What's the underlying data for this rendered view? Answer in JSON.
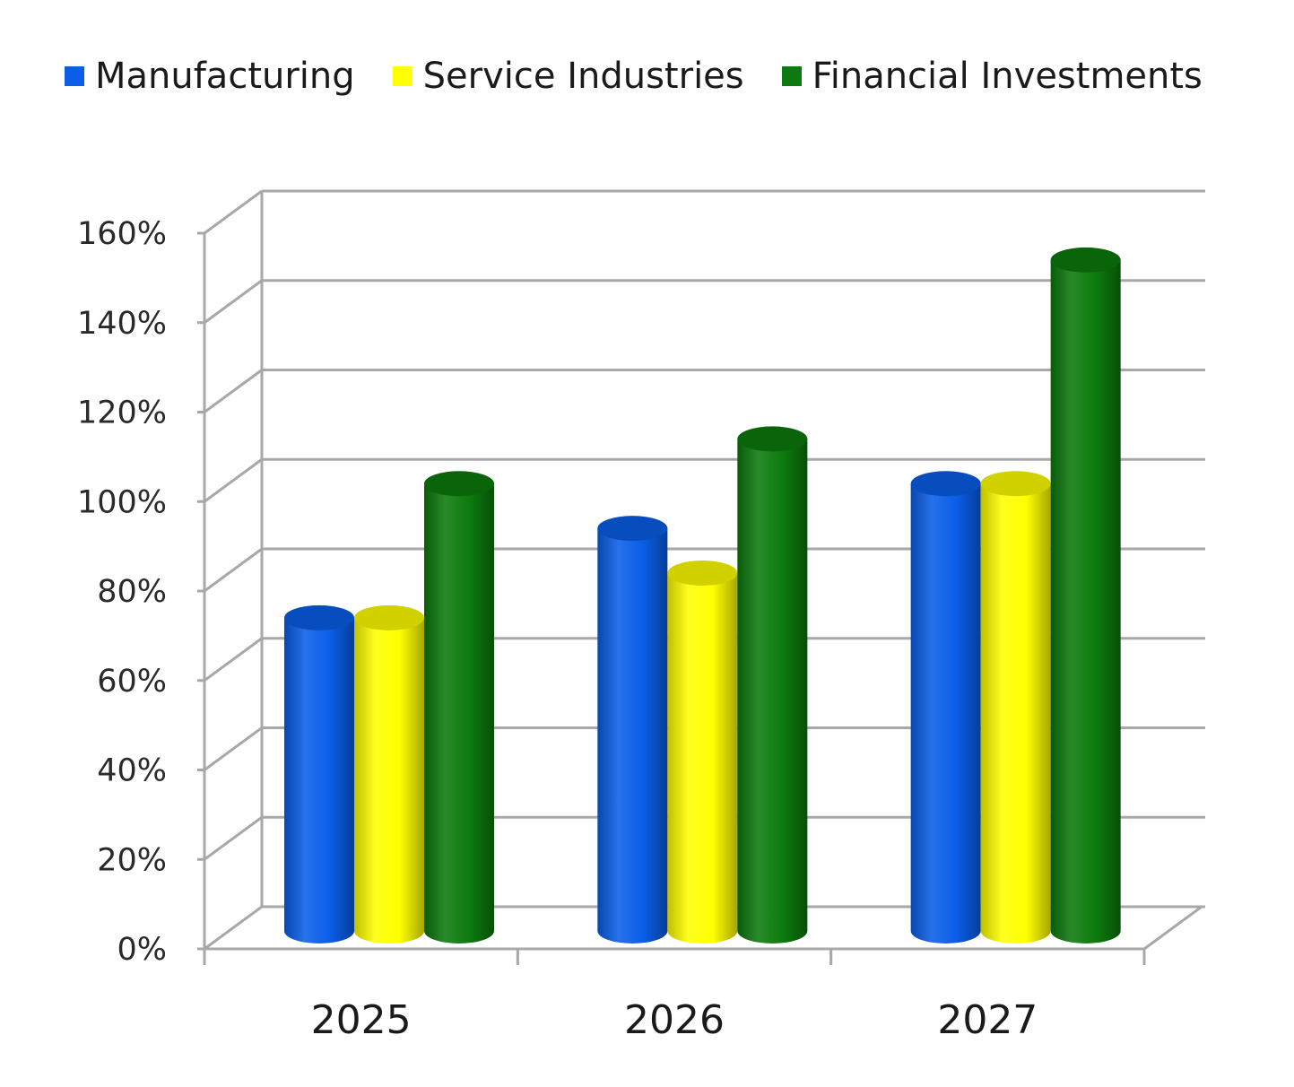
{
  "chart_data": {
    "type": "bar",
    "categories": [
      "2025",
      "2026",
      "2027"
    ],
    "series": [
      {
        "name": "Manufacturing",
        "color": "#0a5ee8",
        "values": [
          0.7,
          0.9,
          1.0
        ]
      },
      {
        "name": "Service Industries",
        "color": "#ffff00",
        "values": [
          0.7,
          0.8,
          1.0
        ]
      },
      {
        "name": "Financial Investments",
        "color": "#0c7a0c",
        "values": [
          1.0,
          1.1,
          1.5
        ]
      }
    ],
    "yticks": [
      "0%",
      "20%",
      "40%",
      "60%",
      "80%",
      "100%",
      "120%",
      "140%",
      "160%"
    ],
    "ylim": [
      0,
      1.6
    ],
    "grid": true,
    "legend": "top",
    "style": "3d-cylinder"
  }
}
